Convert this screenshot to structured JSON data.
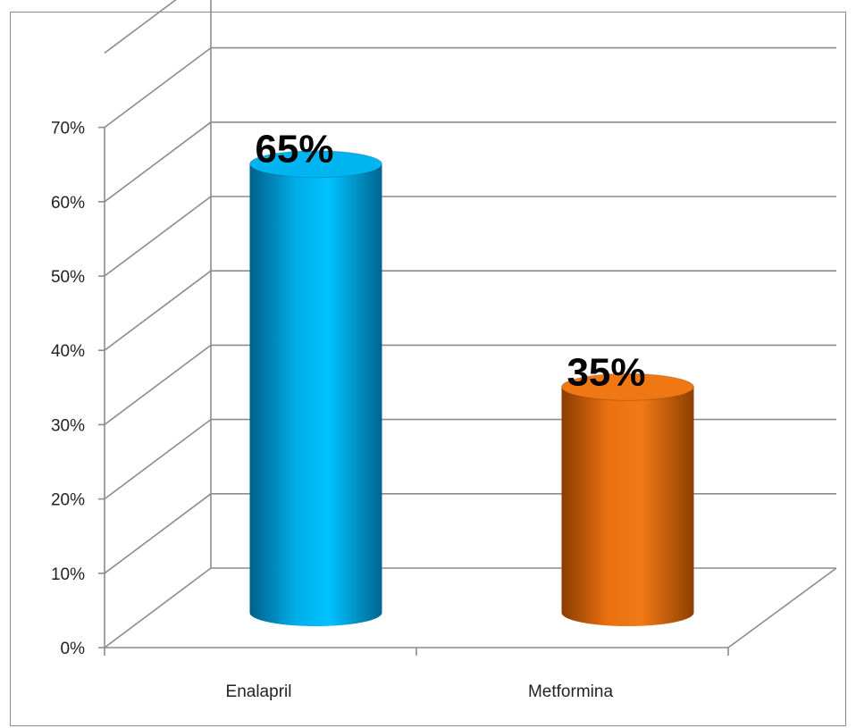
{
  "chart_data": {
    "type": "bar",
    "style": "3d-cylinder",
    "categories": [
      "Enalapril",
      "Metformina"
    ],
    "values": [
      65,
      35
    ],
    "data_labels": [
      "65%",
      "35%"
    ],
    "y_ticks": [
      "0%",
      "10%",
      "20%",
      "30%",
      "40%",
      "50%",
      "60%",
      "70%"
    ],
    "ylim": [
      0,
      70
    ],
    "grid": true,
    "legend": "none",
    "colors": {
      "Enalapril": "#00b4f0",
      "Metformina": "#f07814",
      "grid": "#8c8c8c"
    }
  }
}
